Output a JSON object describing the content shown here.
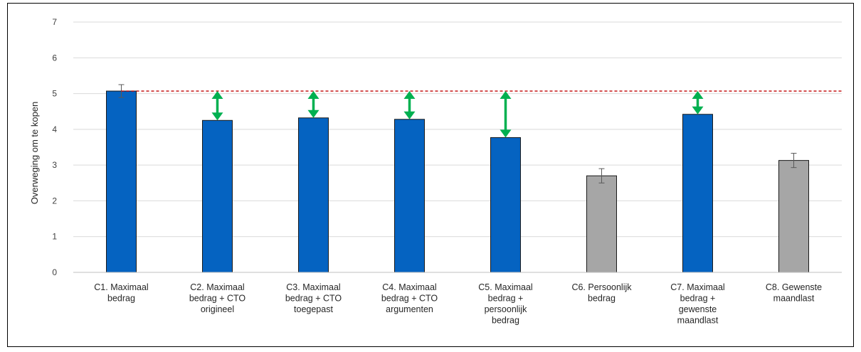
{
  "chart_data": {
    "type": "bar",
    "ylabel": "Overweging om te kopen",
    "ylim": [
      0,
      7
    ],
    "yticks": [
      0,
      1,
      2,
      3,
      4,
      5,
      6,
      7
    ],
    "grid": true,
    "legend": "none",
    "categories": [
      [
        "C1. Maximaal",
        "bedrag"
      ],
      [
        "C2. Maximaal",
        "bedrag + CTO",
        "origineel"
      ],
      [
        "C3. Maximaal",
        "bedrag + CTO",
        "toegepast"
      ],
      [
        "C4. Maximaal",
        "bedrag + CTO",
        "argumenten"
      ],
      [
        "C5. Maximaal",
        "bedrag +",
        "persoonlijk",
        "bedrag"
      ],
      [
        "C6. Persoonlijk",
        "bedrag"
      ],
      [
        "C7. Maximaal",
        "bedrag +",
        "gewenste",
        "maandlast"
      ],
      [
        "C8. Gewenste",
        "maandlast"
      ]
    ],
    "values": [
      5.07,
      4.25,
      4.32,
      4.28,
      3.77,
      2.7,
      4.42,
      3.13
    ],
    "errors": [
      0.18,
      0,
      0,
      0,
      0,
      0.2,
      0,
      0.2
    ],
    "bar_colors": [
      "#0563c1",
      "#0563c1",
      "#0563c1",
      "#0563c1",
      "#0563c1",
      "#a6a6a6",
      "#0563c1",
      "#a6a6a6"
    ],
    "reference_line": {
      "value": 5.07,
      "color": "#c00000",
      "style": "dashed"
    },
    "difference_arrows": [
      {
        "category_index": 1,
        "from": 4.25,
        "to": 5.07
      },
      {
        "category_index": 2,
        "from": 4.32,
        "to": 5.07
      },
      {
        "category_index": 3,
        "from": 4.28,
        "to": 5.07
      },
      {
        "category_index": 4,
        "from": 3.77,
        "to": 5.07
      },
      {
        "category_index": 6,
        "from": 4.42,
        "to": 5.07
      }
    ],
    "arrow_color": "#00b050",
    "gridline_color": "#d9d9d9"
  }
}
